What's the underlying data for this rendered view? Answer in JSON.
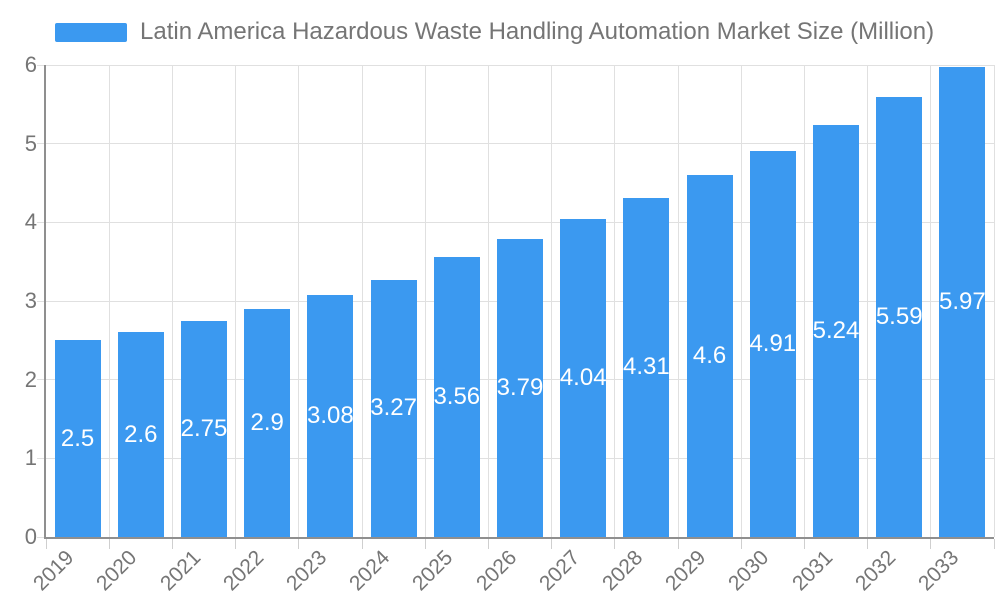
{
  "legend": {
    "label": "Latin America Hazardous Waste Handling Automation Market Size (Million)"
  },
  "colors": {
    "bar": "#3b99f0",
    "axis_line": "#8f8f8f",
    "grid_line": "#e0e0e0",
    "tick_line": "#cfcfcf",
    "axis_label_text": "#757575",
    "legend_text": "#757575",
    "value_label_text": "#ffffff",
    "background": "#ffffff"
  },
  "chart_data": {
    "type": "bar",
    "title": "Latin America Hazardous Waste Handling Automation Market Size (Million)",
    "categories": [
      "2019",
      "2020",
      "2021",
      "2022",
      "2023",
      "2024",
      "2025",
      "2026",
      "2027",
      "2028",
      "2029",
      "2030",
      "2031",
      "2032",
      "2033"
    ],
    "values": [
      2.5,
      2.6,
      2.75,
      2.9,
      3.08,
      3.27,
      3.56,
      3.79,
      4.04,
      4.31,
      4.6,
      4.91,
      5.24,
      5.59,
      5.97
    ],
    "bar_labels": [
      "2.5",
      "2.6",
      "2.75",
      "2.9",
      "3.08",
      "3.27",
      "3.56",
      "3.79",
      "4.04",
      "4.31",
      "4.6",
      "4.91",
      "5.24",
      "5.59",
      "5.97"
    ],
    "xlabel": "",
    "ylabel": "",
    "ylim": [
      0,
      6
    ],
    "yticks": [
      0,
      1,
      2,
      3,
      4,
      5,
      6
    ],
    "grid": true,
    "legend_position": "top-left",
    "value_labels_position": "inside-center"
  }
}
